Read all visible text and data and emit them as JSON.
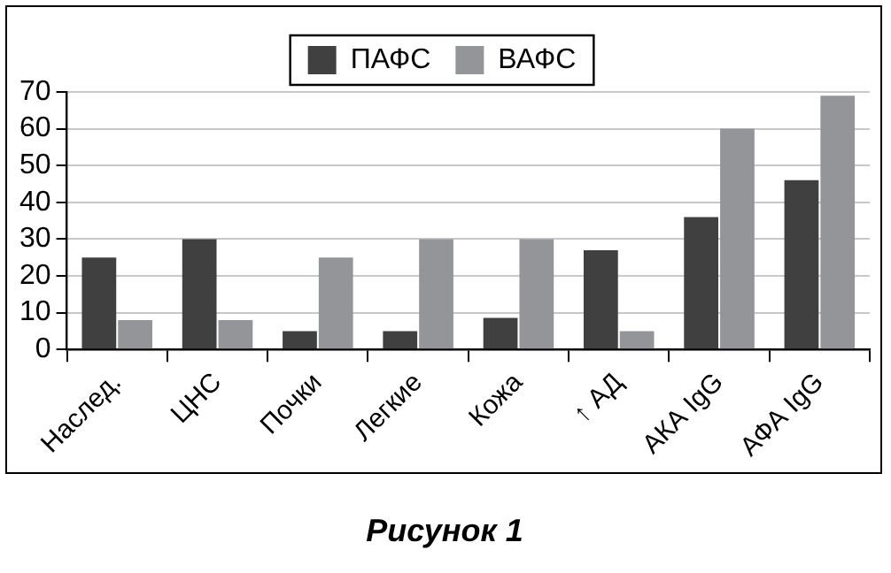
{
  "chart_data": {
    "type": "bar",
    "title": "Рисунок 1",
    "categories": [
      "Наслед.",
      "ЦНС",
      "Почки",
      "Легкие",
      "Кожа",
      "↑ АД",
      "АКА IgG",
      "АФА IgG"
    ],
    "series": [
      {
        "name": "ПАФС",
        "color": "#404040",
        "values": [
          25,
          30,
          5,
          5,
          8.6,
          27,
          36,
          46
        ]
      },
      {
        "name": "ВАФС",
        "color": "#939598",
        "values": [
          8,
          8,
          25,
          30,
          30,
          5,
          60,
          69
        ]
      }
    ],
    "ylim": [
      0,
      70
    ],
    "yticks": [
      0,
      10,
      20,
      30,
      40,
      50,
      60,
      70
    ],
    "grid": "y",
    "legend": "top"
  }
}
